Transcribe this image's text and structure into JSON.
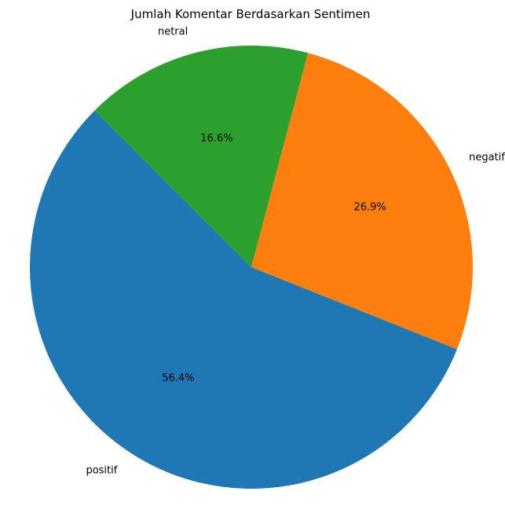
{
  "chart_data": {
    "type": "pie",
    "title": "Jumlah Komentar Berdasarkan Sentimen",
    "slices": [
      {
        "label": "positif",
        "percent": 56.4,
        "percent_label": "56.4%",
        "color": "#1f77b4"
      },
      {
        "label": "negatif",
        "percent": 26.9,
        "percent_label": "26.9%",
        "color": "#ff7f0e"
      },
      {
        "label": "netral",
        "percent": 16.6,
        "percent_label": "16.6%",
        "color": "#2ca02c"
      }
    ],
    "start_angle_deg": 135,
    "direction": "counterclockwise",
    "legend": "none"
  }
}
